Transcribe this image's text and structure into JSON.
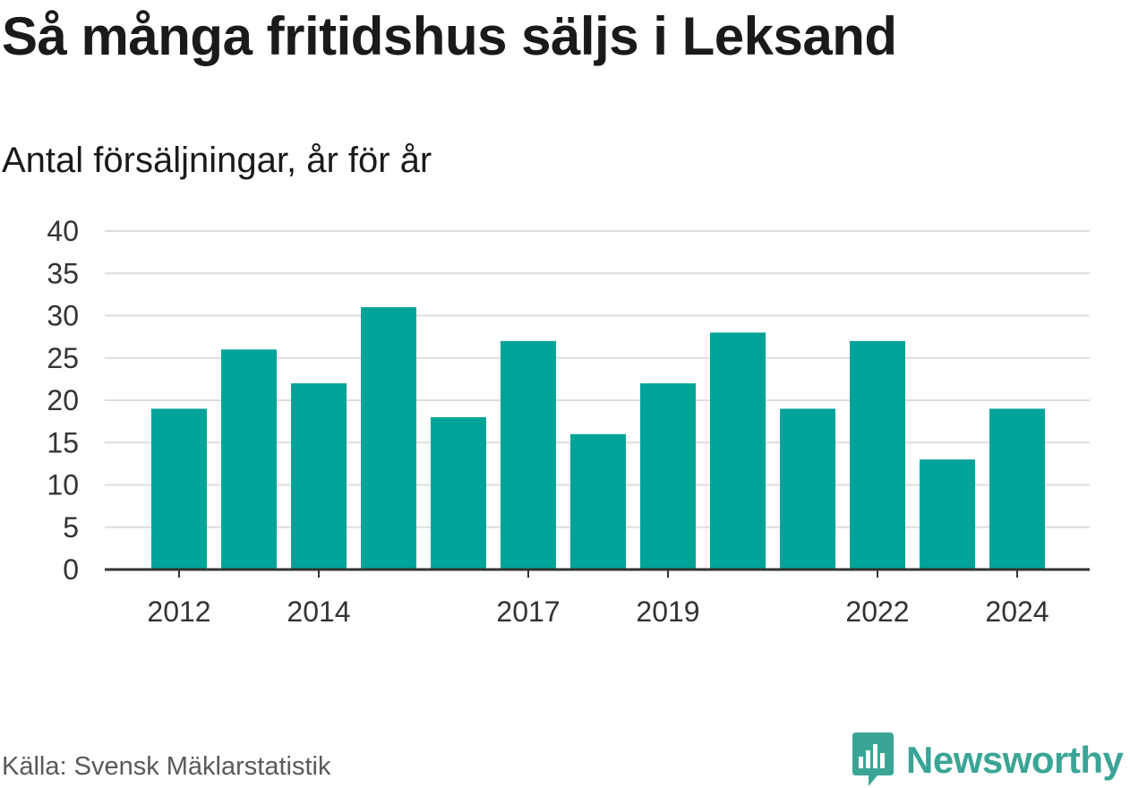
{
  "title": "Så många fritidshus säljs i Leksand",
  "subtitle": "Antal försäljningar, år för år",
  "source": "Källa: Svensk Mäklarstatistik",
  "brand": {
    "name": "Newsworthy",
    "icon": "newsworthy-logo-icon",
    "color": "#3aa596"
  },
  "colors": {
    "bar": "#00a398",
    "grid": "#dddddd",
    "axis": "#333333"
  },
  "chart_data": {
    "type": "bar",
    "categories": [
      "2012",
      "2013",
      "2014",
      "2015",
      "2016",
      "2017",
      "2018",
      "2019",
      "2020",
      "2021",
      "2022",
      "2023",
      "2024"
    ],
    "values": [
      19,
      26,
      22,
      31,
      18,
      27,
      16,
      22,
      28,
      19,
      27,
      13,
      19
    ],
    "xtick_labels": [
      "2012",
      "2014",
      "2017",
      "2019",
      "2022",
      "2024"
    ],
    "yticks": [
      0,
      5,
      10,
      15,
      20,
      25,
      30,
      35,
      40
    ],
    "ylim": [
      0,
      40
    ],
    "grid": true
  }
}
